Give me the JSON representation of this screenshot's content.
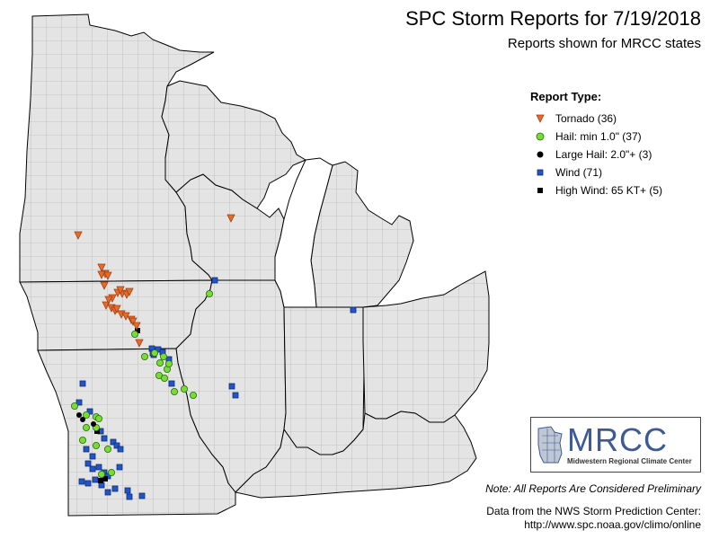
{
  "title": "SPC Storm Reports for 7/19/2018",
  "subtitle": "Reports shown for MRCC states",
  "legend": {
    "title": "Report Type:",
    "items": [
      {
        "label": "Tornado (36)",
        "symbol": "triangle-down",
        "color": "#e46b2c"
      },
      {
        "label": "Hail: min 1.0\" (37)",
        "symbol": "circle",
        "color": "#77dd33"
      },
      {
        "label": "Large Hail: 2.0\"+ (3)",
        "symbol": "circle",
        "color": "#000000"
      },
      {
        "label": "Wind (71)",
        "symbol": "square",
        "color": "#2255cc"
      },
      {
        "label": "High Wind: 65 KT+ (5)",
        "symbol": "square",
        "color": "#000000"
      }
    ]
  },
  "note": "Note: All Reports Are Considered Preliminary",
  "source_line1": "Data from the NWS Storm Prediction Center:",
  "source_line2": "http://www.spc.noaa.gov/climo/online",
  "logo": {
    "name": "MRCC",
    "subtitle": "Midwestern Regional Climate Center"
  },
  "colors": {
    "land": "#e4e4e4",
    "water": "#ffffff",
    "border": "#000000",
    "county": "#9a9a9a"
  }
}
